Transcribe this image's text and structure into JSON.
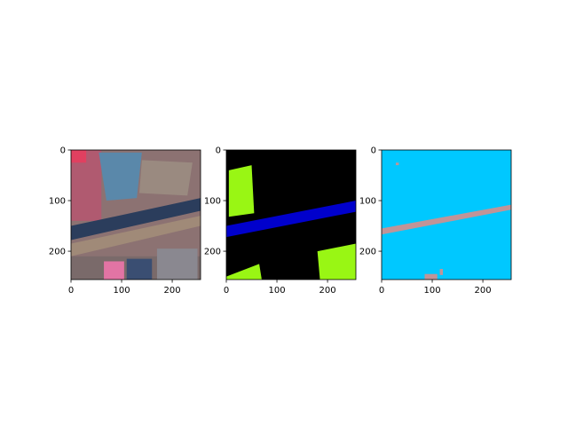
{
  "chart_data": [
    {
      "type": "image",
      "xlim": [
        0,
        256
      ],
      "ylim": [
        256,
        0
      ],
      "xticks": [
        0,
        100,
        200
      ],
      "yticks": [
        0,
        100,
        200
      ]
    },
    {
      "type": "image",
      "xlim": [
        0,
        256
      ],
      "ylim": [
        256,
        0
      ],
      "xticks": [
        0,
        100,
        200
      ],
      "yticks": [
        0,
        100,
        200
      ]
    },
    {
      "type": "image",
      "xlim": [
        0,
        256
      ],
      "ylim": [
        256,
        0
      ],
      "xticks": [
        0,
        100,
        200
      ],
      "yticks": [
        0,
        100,
        200
      ]
    }
  ]
}
